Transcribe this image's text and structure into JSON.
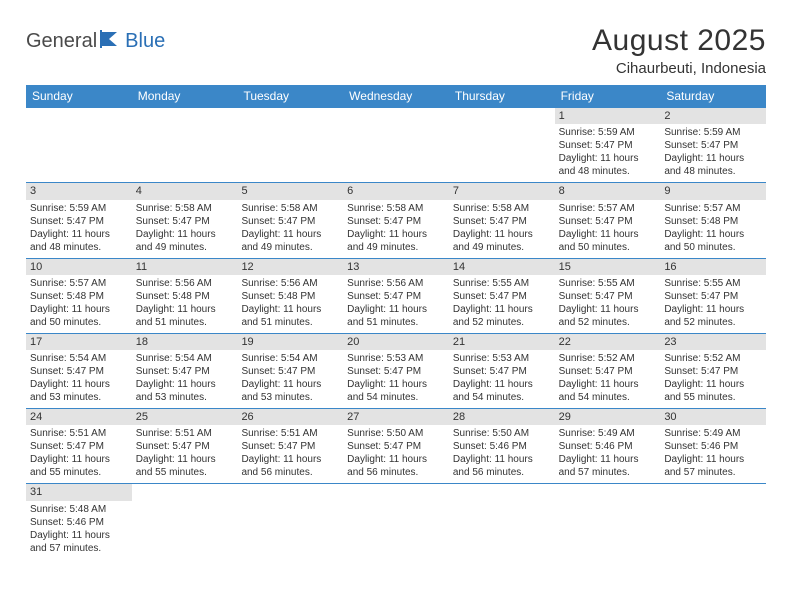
{
  "logo": {
    "part1": "General",
    "part2": "Blue"
  },
  "header": {
    "month_title": "August 2025",
    "location": "Cihaurbeuti, Indonesia"
  },
  "colors": {
    "header_blue": "#3b87c8",
    "daynum_bg": "#e3e3e3",
    "text": "#333333",
    "logo_gray": "#4a4a4a",
    "logo_blue": "#2a6fb5",
    "background": "#ffffff"
  },
  "dayNames": [
    "Sunday",
    "Monday",
    "Tuesday",
    "Wednesday",
    "Thursday",
    "Friday",
    "Saturday"
  ],
  "weeks": [
    [
      null,
      null,
      null,
      null,
      null,
      {
        "n": "1",
        "sr": "5:59 AM",
        "ss": "5:47 PM",
        "dl": "11 hours and 48 minutes."
      },
      {
        "n": "2",
        "sr": "5:59 AM",
        "ss": "5:47 PM",
        "dl": "11 hours and 48 minutes."
      }
    ],
    [
      {
        "n": "3",
        "sr": "5:59 AM",
        "ss": "5:47 PM",
        "dl": "11 hours and 48 minutes."
      },
      {
        "n": "4",
        "sr": "5:58 AM",
        "ss": "5:47 PM",
        "dl": "11 hours and 49 minutes."
      },
      {
        "n": "5",
        "sr": "5:58 AM",
        "ss": "5:47 PM",
        "dl": "11 hours and 49 minutes."
      },
      {
        "n": "6",
        "sr": "5:58 AM",
        "ss": "5:47 PM",
        "dl": "11 hours and 49 minutes."
      },
      {
        "n": "7",
        "sr": "5:58 AM",
        "ss": "5:47 PM",
        "dl": "11 hours and 49 minutes."
      },
      {
        "n": "8",
        "sr": "5:57 AM",
        "ss": "5:47 PM",
        "dl": "11 hours and 50 minutes."
      },
      {
        "n": "9",
        "sr": "5:57 AM",
        "ss": "5:48 PM",
        "dl": "11 hours and 50 minutes."
      }
    ],
    [
      {
        "n": "10",
        "sr": "5:57 AM",
        "ss": "5:48 PM",
        "dl": "11 hours and 50 minutes."
      },
      {
        "n": "11",
        "sr": "5:56 AM",
        "ss": "5:48 PM",
        "dl": "11 hours and 51 minutes."
      },
      {
        "n": "12",
        "sr": "5:56 AM",
        "ss": "5:48 PM",
        "dl": "11 hours and 51 minutes."
      },
      {
        "n": "13",
        "sr": "5:56 AM",
        "ss": "5:47 PM",
        "dl": "11 hours and 51 minutes."
      },
      {
        "n": "14",
        "sr": "5:55 AM",
        "ss": "5:47 PM",
        "dl": "11 hours and 52 minutes."
      },
      {
        "n": "15",
        "sr": "5:55 AM",
        "ss": "5:47 PM",
        "dl": "11 hours and 52 minutes."
      },
      {
        "n": "16",
        "sr": "5:55 AM",
        "ss": "5:47 PM",
        "dl": "11 hours and 52 minutes."
      }
    ],
    [
      {
        "n": "17",
        "sr": "5:54 AM",
        "ss": "5:47 PM",
        "dl": "11 hours and 53 minutes."
      },
      {
        "n": "18",
        "sr": "5:54 AM",
        "ss": "5:47 PM",
        "dl": "11 hours and 53 minutes."
      },
      {
        "n": "19",
        "sr": "5:54 AM",
        "ss": "5:47 PM",
        "dl": "11 hours and 53 minutes."
      },
      {
        "n": "20",
        "sr": "5:53 AM",
        "ss": "5:47 PM",
        "dl": "11 hours and 54 minutes."
      },
      {
        "n": "21",
        "sr": "5:53 AM",
        "ss": "5:47 PM",
        "dl": "11 hours and 54 minutes."
      },
      {
        "n": "22",
        "sr": "5:52 AM",
        "ss": "5:47 PM",
        "dl": "11 hours and 54 minutes."
      },
      {
        "n": "23",
        "sr": "5:52 AM",
        "ss": "5:47 PM",
        "dl": "11 hours and 55 minutes."
      }
    ],
    [
      {
        "n": "24",
        "sr": "5:51 AM",
        "ss": "5:47 PM",
        "dl": "11 hours and 55 minutes."
      },
      {
        "n": "25",
        "sr": "5:51 AM",
        "ss": "5:47 PM",
        "dl": "11 hours and 55 minutes."
      },
      {
        "n": "26",
        "sr": "5:51 AM",
        "ss": "5:47 PM",
        "dl": "11 hours and 56 minutes."
      },
      {
        "n": "27",
        "sr": "5:50 AM",
        "ss": "5:47 PM",
        "dl": "11 hours and 56 minutes."
      },
      {
        "n": "28",
        "sr": "5:50 AM",
        "ss": "5:46 PM",
        "dl": "11 hours and 56 minutes."
      },
      {
        "n": "29",
        "sr": "5:49 AM",
        "ss": "5:46 PM",
        "dl": "11 hours and 57 minutes."
      },
      {
        "n": "30",
        "sr": "5:49 AM",
        "ss": "5:46 PM",
        "dl": "11 hours and 57 minutes."
      }
    ],
    [
      {
        "n": "31",
        "sr": "5:48 AM",
        "ss": "5:46 PM",
        "dl": "11 hours and 57 minutes."
      },
      null,
      null,
      null,
      null,
      null,
      null
    ]
  ],
  "labels": {
    "sunrise": "Sunrise:",
    "sunset": "Sunset:",
    "daylight": "Daylight:"
  }
}
